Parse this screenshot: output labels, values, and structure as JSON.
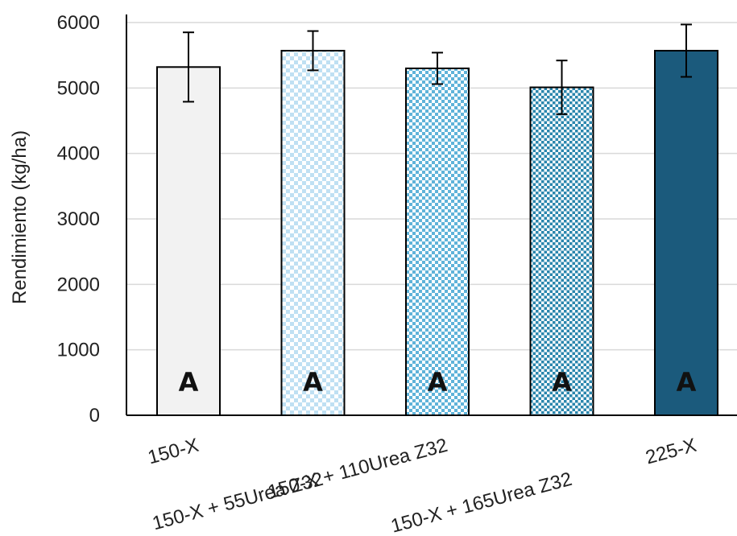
{
  "chart_data": {
    "type": "bar",
    "title": "",
    "xlabel": "",
    "ylabel": "Rendimiento (kg/ha)",
    "ylim": [
      0,
      6000
    ],
    "yticks": [
      "0",
      "1000",
      "2000",
      "3000",
      "4000",
      "5000",
      "6000"
    ],
    "grid": true,
    "categories": [
      "150-X",
      "150-X + 55Urea Z32",
      "150-X + 110Urea Z32",
      "150-X + 165Urea Z32",
      "225-X"
    ],
    "values": [
      5320,
      5570,
      5300,
      5010,
      5570
    ],
    "error": [
      530,
      300,
      240,
      410,
      400
    ],
    "significance_labels": [
      "A",
      "A",
      "A",
      "A",
      "A"
    ],
    "colors": {
      "bar_fill": [
        "#f2f2f2",
        "#bfe0f3",
        "#5fb3d9",
        "#2a86ad",
        "#1b5a7c"
      ],
      "checker": "#ffffff",
      "outline": "#000000",
      "grid": "#d9d9d9"
    }
  }
}
